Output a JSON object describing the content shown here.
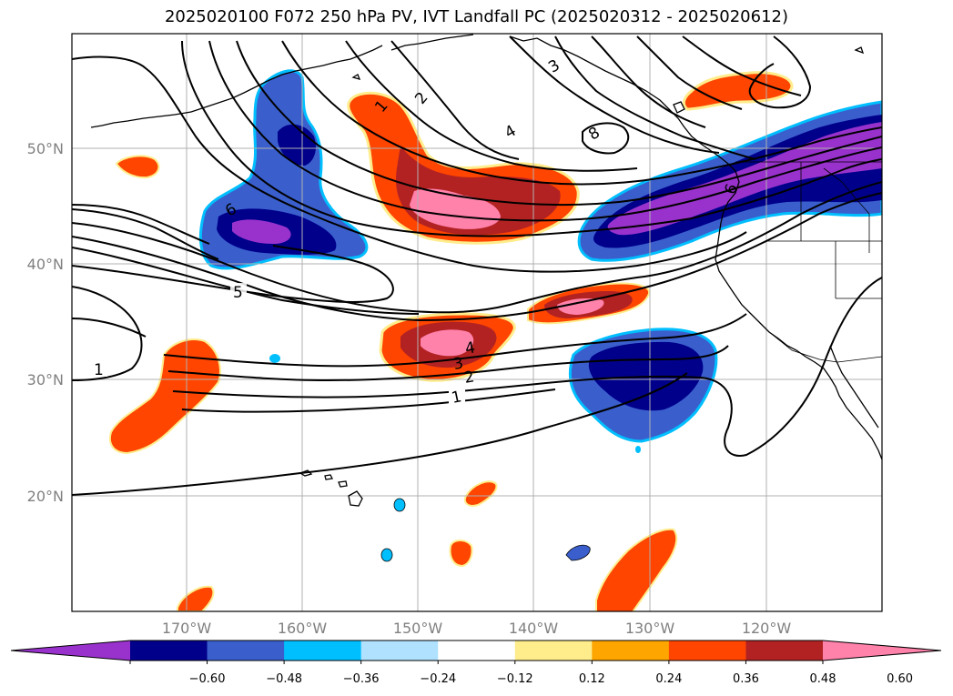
{
  "title": "2025020100 F072 250 hPa PV, IVT Landfall PC (2025020312 - 2025020612)",
  "lat_labels": [
    "50°N",
    "40°N",
    "30°N",
    "20°N"
  ],
  "lon_labels": [
    "170°W",
    "160°W",
    "150°W",
    "140°W",
    "130°W",
    "120°W"
  ],
  "contour_labels": [
    "1",
    "2",
    "3",
    "4",
    "5",
    "6",
    "8"
  ],
  "colorbar": {
    "tick_labels": [
      "−0.60",
      "−0.48",
      "−0.36",
      "−0.24",
      "−0.12",
      "0.12",
      "0.24",
      "0.36",
      "0.48",
      "0.60"
    ],
    "colors": [
      "#9932cc",
      "#00008b",
      "#3a5fcd",
      "#00bfff",
      "#b0e2ff",
      "#ffffff",
      "#ffec8b",
      "#ffa500",
      "#ff4500",
      "#b22222",
      "#ff82ab"
    ]
  },
  "colors": {
    "positive_low": "#ffec8b",
    "positive_mid": "#ff4500",
    "positive_high": "#b22222",
    "positive_max": "#ff82ab",
    "negative_low": "#00bfff",
    "negative_mid": "#3a5fcd",
    "negative_high": "#00008b",
    "negative_max": "#9932cc",
    "gridline": "#b0b0b0",
    "contour": "#000000"
  }
}
